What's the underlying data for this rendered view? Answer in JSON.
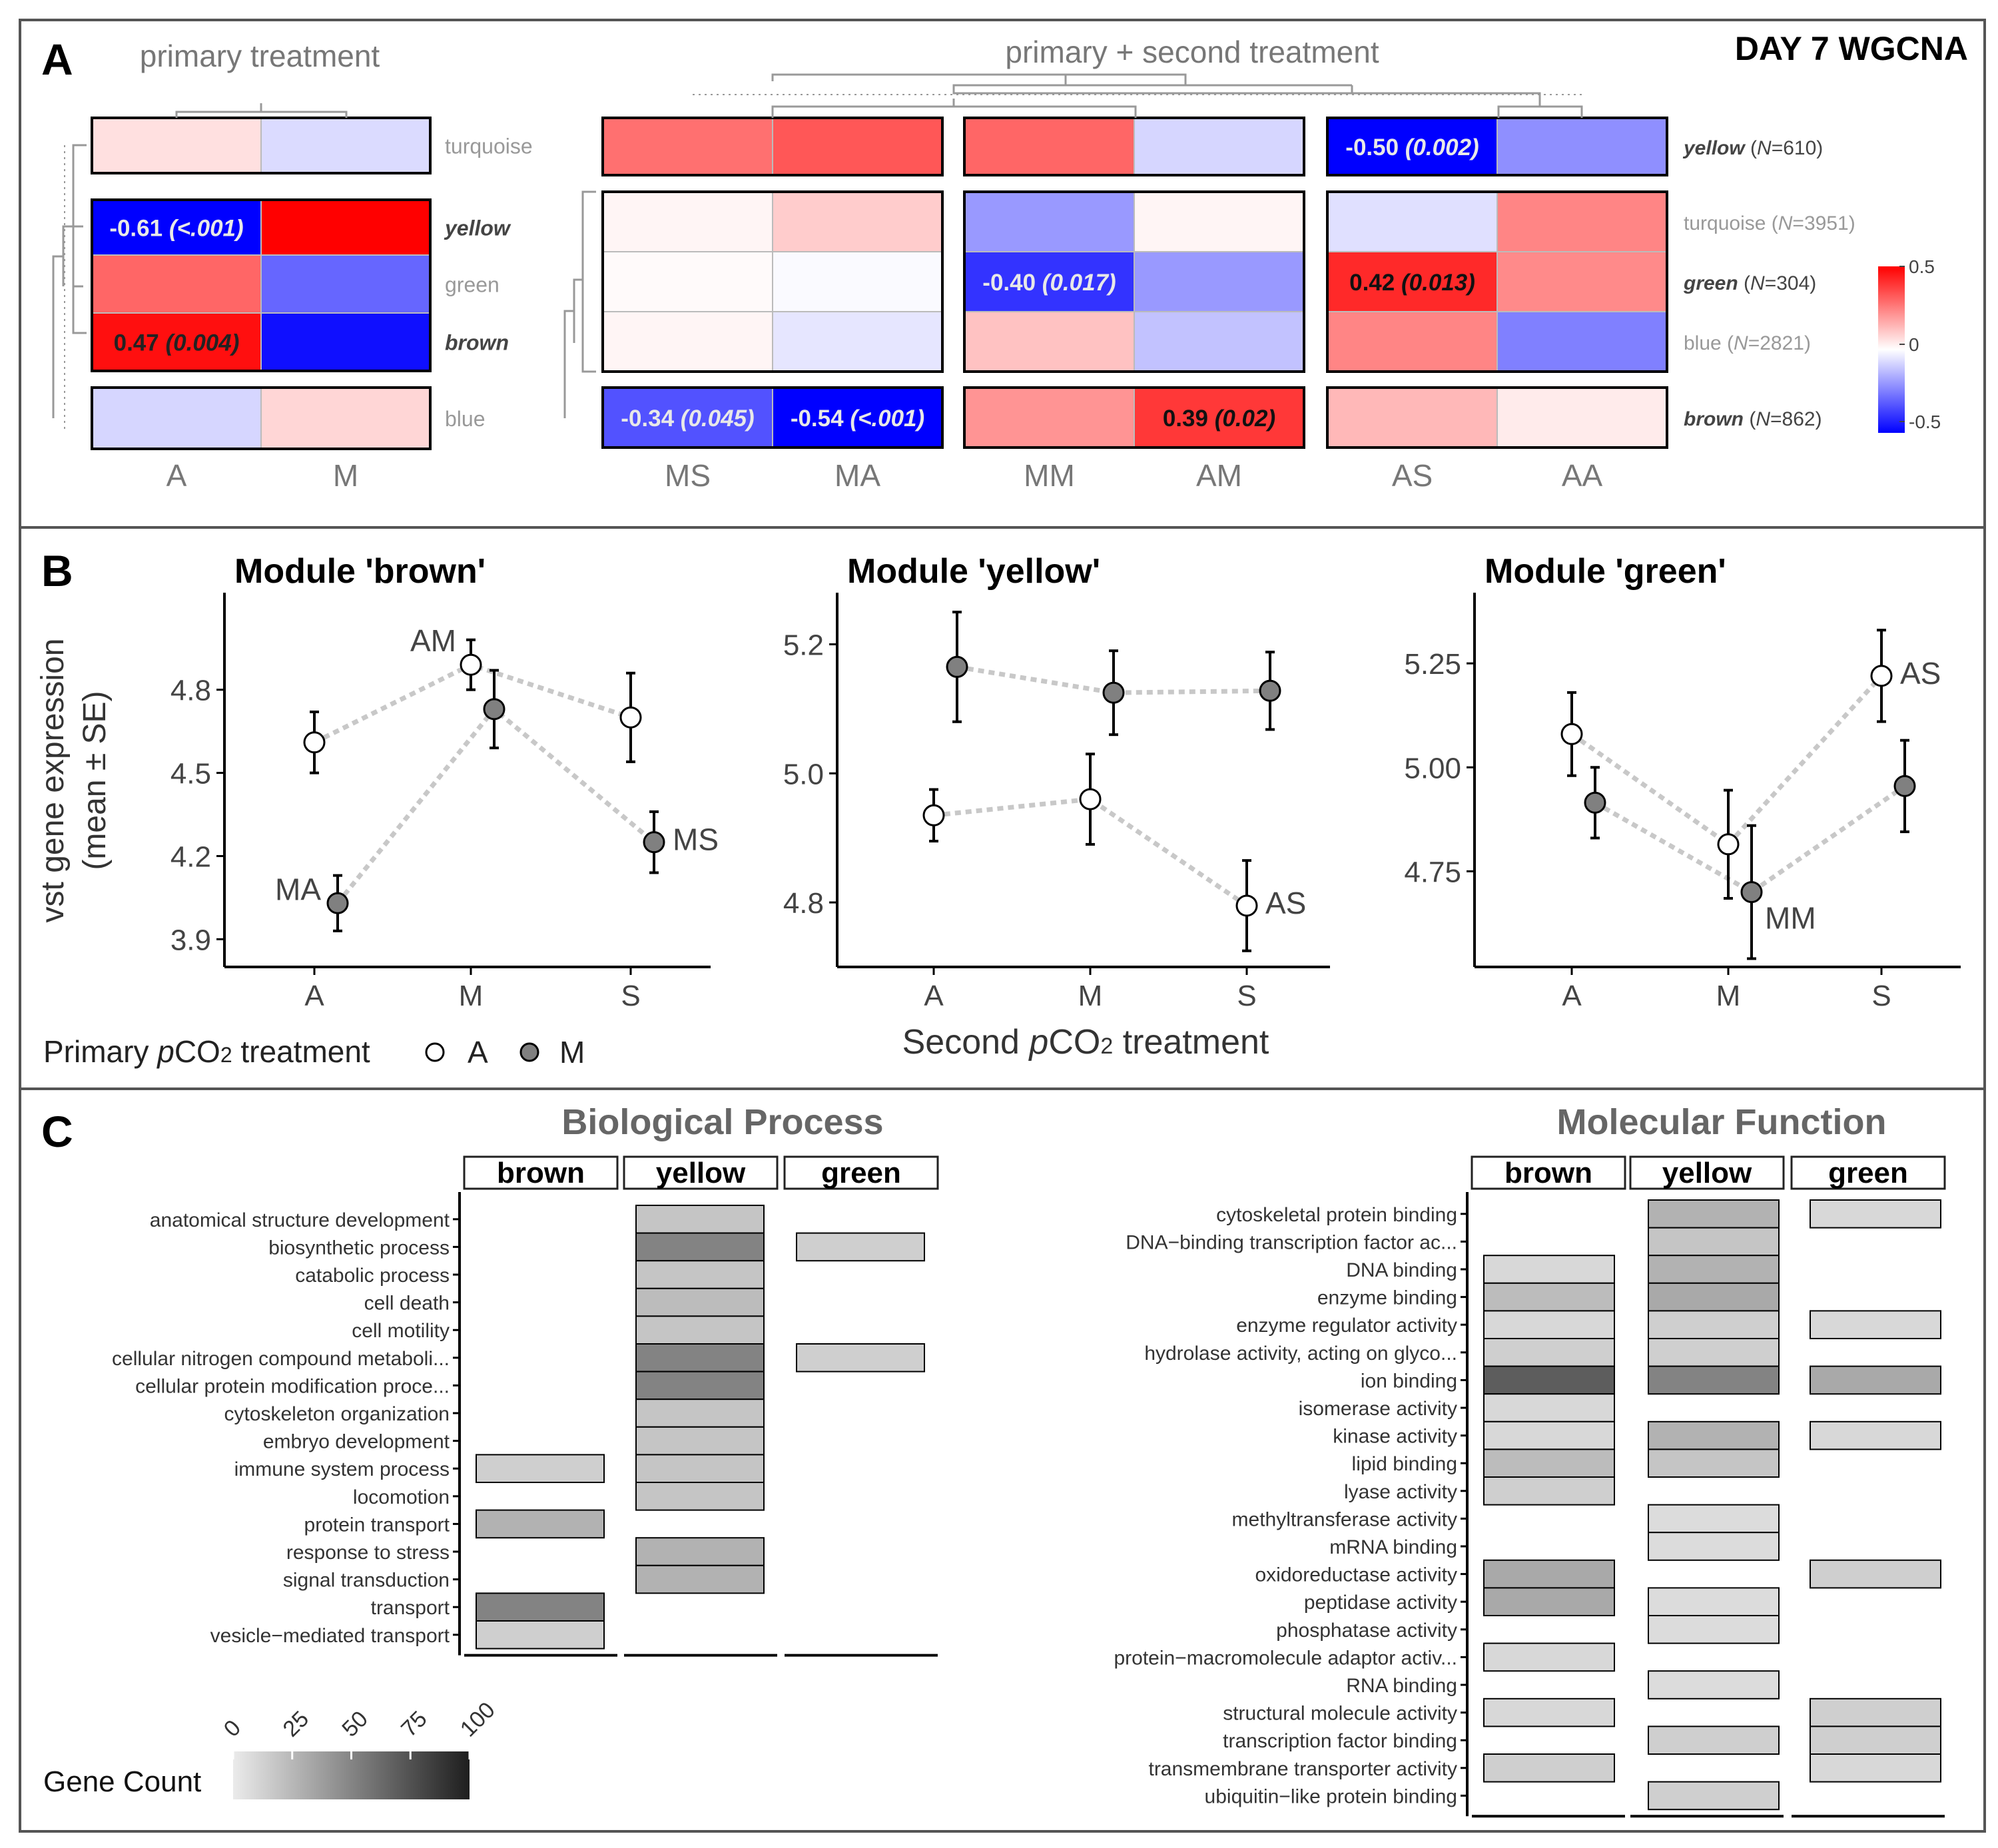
{
  "figure_title": "DAY 7 WGCNA",
  "panel_labels": [
    "A",
    "B",
    "C"
  ],
  "colors": {
    "blue": "#0000ff",
    "white": "#ffffff",
    "red": "#ff0000",
    "panel_border": "#555555",
    "gray_text": "#777777",
    "dendrogram": "#999999",
    "line_dotted": "#c8c8c8",
    "point_M": "#808080"
  },
  "chart_data": [
    {
      "type": "heatmap",
      "panel": "A",
      "subtitle": "primary treatment",
      "columns": [
        "A",
        "M"
      ],
      "rows": [
        "turquoise",
        "yellow",
        "green",
        "brown",
        "blue"
      ],
      "groups": [
        [
          "turquoise"
        ],
        [
          "yellow",
          "green",
          "brown"
        ],
        [
          "blue"
        ]
      ],
      "values": [
        [
          0.06,
          -0.07
        ],
        [
          -0.61,
          0.61
        ],
        [
          0.3,
          -0.3
        ],
        [
          0.47,
          -0.47
        ],
        [
          -0.08,
          0.08
        ]
      ],
      "labels": [
        {
          "row": "yellow",
          "col": "A",
          "text": "-0.61 ",
          "p": "(<.001)"
        },
        {
          "row": "brown",
          "col": "A",
          "text": "0.47 ",
          "p": "(0.004)"
        }
      ],
      "bold_rows": [
        "yellow",
        "brown"
      ],
      "scale": {
        "min": -0.5,
        "max": 0.5,
        "ticks": [
          "0.5",
          "0",
          "-0.5"
        ]
      }
    },
    {
      "type": "heatmap",
      "panel": "A",
      "subtitle": "primary + second treatment",
      "columns": [
        "MS",
        "MA",
        "MM",
        "AM",
        "AS",
        "AA"
      ],
      "rows": [
        "yellow",
        "turquoise",
        "green",
        "blue",
        "brown"
      ],
      "row_labels": [
        {
          "name": "yellow",
          "n": "610",
          "bold": true
        },
        {
          "name": "turquoise",
          "n": "3951",
          "bold": false
        },
        {
          "name": "green",
          "n": "304",
          "bold": true
        },
        {
          "name": "blue",
          "n": "2821",
          "bold": false
        },
        {
          "name": "brown",
          "n": "862",
          "bold": true
        }
      ],
      "values": [
        [
          0.28,
          0.33,
          0.3,
          -0.08,
          -0.5,
          -0.22
        ],
        [
          0.02,
          0.1,
          -0.2,
          0.02,
          -0.06,
          0.24
        ],
        [
          0.01,
          -0.01,
          -0.4,
          -0.2,
          0.42,
          0.23
        ],
        [
          0.02,
          -0.05,
          0.12,
          -0.12,
          0.24,
          -0.25
        ],
        [
          -0.34,
          -0.54,
          0.21,
          0.39,
          0.14,
          0.04
        ]
      ],
      "labels": [
        {
          "row": "yellow",
          "col": "AS",
          "text": "-0.50 ",
          "p": "(0.002)"
        },
        {
          "row": "green",
          "col": "MM",
          "text": "-0.40 ",
          "p": "(0.017)"
        },
        {
          "row": "green",
          "col": "AS",
          "text": "0.42 ",
          "p": "(0.013)"
        },
        {
          "row": "brown",
          "col": "MS",
          "text": "-0.34 ",
          "p": "(0.045)"
        },
        {
          "row": "brown",
          "col": "MA",
          "text": "-0.54 ",
          "p": "(<.001)"
        },
        {
          "row": "brown",
          "col": "AM",
          "text": "0.39 ",
          "p": "(0.02)"
        }
      ]
    },
    {
      "type": "line",
      "panel": "B",
      "title": "Module 'brown'",
      "x": [
        "A",
        "M",
        "S"
      ],
      "ylim": [
        3.8,
        5.15
      ],
      "yticks": [
        "3.9",
        "4.2",
        "4.5",
        "4.8"
      ],
      "series": [
        {
          "name": "A",
          "values": [
            4.61,
            4.89,
            4.7
          ],
          "se": [
            0.11,
            0.09,
            0.16
          ],
          "labels": [
            "",
            "AM",
            ""
          ]
        },
        {
          "name": "M",
          "values": [
            4.03,
            4.73,
            4.25
          ],
          "se": [
            0.1,
            0.14,
            0.11
          ],
          "labels": [
            "MA",
            "",
            "MS"
          ]
        }
      ]
    },
    {
      "type": "line",
      "panel": "B",
      "title": "Module 'yellow'",
      "x": [
        "A",
        "M",
        "S"
      ],
      "ylim": [
        4.7,
        5.28
      ],
      "yticks": [
        "4.8",
        "5.0",
        "5.2"
      ],
      "series": [
        {
          "name": "A",
          "values": [
            4.935,
            4.96,
            4.795
          ],
          "se": [
            0.04,
            0.07,
            0.07
          ],
          "labels": [
            "",
            "",
            "AS"
          ]
        },
        {
          "name": "M",
          "values": [
            5.165,
            5.125,
            5.128
          ],
          "se": [
            0.085,
            0.065,
            0.06
          ],
          "labels": [
            "",
            "",
            ""
          ]
        }
      ]
    },
    {
      "type": "line",
      "panel": "B",
      "title": "Module 'green'",
      "x": [
        "A",
        "M",
        "S"
      ],
      "ylim": [
        4.52,
        5.42
      ],
      "yticks": [
        "4.75",
        "5.00",
        "5.25"
      ],
      "series": [
        {
          "name": "A",
          "values": [
            5.08,
            4.815,
            5.22
          ],
          "se": [
            0.1,
            0.13,
            0.11
          ],
          "labels": [
            "",
            "",
            "AS"
          ]
        },
        {
          "name": "M",
          "values": [
            4.915,
            4.7,
            4.955
          ],
          "se": [
            0.085,
            0.16,
            0.11
          ],
          "labels": [
            "",
            "MM",
            ""
          ]
        }
      ]
    },
    {
      "type": "heatmap",
      "panel": "C",
      "title": "Biological Process",
      "columns": [
        "brown",
        "yellow",
        "green"
      ],
      "rows": [
        "anatomical structure development",
        "biosynthetic process",
        "catabolic process",
        "cell death",
        "cell motility",
        "cellular nitrogen compound metaboli...",
        "cellular protein modification proce...",
        "cytoskeleton organization",
        "embryo development",
        "immune system process",
        "locomotion",
        "protein transport",
        "response to stress",
        "signal transduction",
        "transport",
        "vesicle−mediated transport"
      ],
      "values": [
        [
          null,
          20,
          null
        ],
        [
          null,
          55,
          15
        ],
        [
          null,
          20,
          null
        ],
        [
          null,
          25,
          null
        ],
        [
          null,
          20,
          null
        ],
        [
          null,
          55,
          15
        ],
        [
          null,
          55,
          null
        ],
        [
          null,
          20,
          null
        ],
        [
          null,
          20,
          null
        ],
        [
          15,
          20,
          null
        ],
        [
          null,
          20,
          null
        ],
        [
          30,
          null,
          null
        ],
        [
          null,
          30,
          null
        ],
        [
          null,
          30,
          null
        ],
        [
          55,
          null,
          null
        ],
        [
          15,
          null,
          null
        ]
      ]
    },
    {
      "type": "heatmap",
      "panel": "C",
      "title": "Molecular Function",
      "columns": [
        "brown",
        "yellow",
        "green"
      ],
      "rows": [
        "cytoskeletal protein binding",
        "DNA−binding transcription factor ac...",
        "DNA binding",
        "enzyme binding",
        "enzyme regulator activity",
        "hydrolase activity, acting on glyco...",
        "ion binding",
        "isomerase activity",
        "kinase activity",
        "lipid binding",
        "lyase activity",
        "methyltransferase activity",
        "mRNA binding",
        "oxidoreductase activity",
        "peptidase activity",
        "phosphatase activity",
        "protein−macromolecule adaptor activ...",
        "RNA binding",
        "structural molecule activity",
        "transcription factor binding",
        "transmembrane transporter activity",
        "ubiquitin−like protein binding"
      ],
      "values": [
        [
          null,
          30,
          10
        ],
        [
          null,
          20,
          null
        ],
        [
          10,
          30,
          null
        ],
        [
          25,
          35,
          null
        ],
        [
          10,
          15,
          10
        ],
        [
          15,
          15,
          null
        ],
        [
          75,
          55,
          35
        ],
        [
          10,
          null,
          null
        ],
        [
          10,
          30,
          10
        ],
        [
          25,
          20,
          null
        ],
        [
          15,
          null,
          null
        ],
        [
          null,
          8,
          null
        ],
        [
          null,
          8,
          null
        ],
        [
          35,
          null,
          15
        ],
        [
          35,
          8,
          null
        ],
        [
          null,
          8,
          null
        ],
        [
          10,
          null,
          null
        ],
        [
          null,
          8,
          null
        ],
        [
          10,
          null,
          15
        ],
        [
          null,
          15,
          15
        ],
        [
          15,
          null,
          10
        ],
        [
          null,
          15,
          null
        ]
      ]
    }
  ],
  "legend_B": {
    "title_pre": "Primary ",
    "title_italic": "p",
    "title_co": "CO",
    "title_sub": "2",
    "title_post": " treatment",
    "items": [
      "A",
      "M"
    ]
  },
  "axis_B": {
    "ylabel_line1": "vst gene expression",
    "ylabel_line2": "(mean ± SE)",
    "xlabel_pre": "Second ",
    "xlabel_italic": "p",
    "xlabel_co": "CO",
    "xlabel_sub": "2",
    "xlabel_post": " treatment"
  },
  "legend_C": {
    "title": "Gene Count",
    "ticks": [
      "0",
      "25",
      "50",
      "75",
      "100"
    ]
  }
}
